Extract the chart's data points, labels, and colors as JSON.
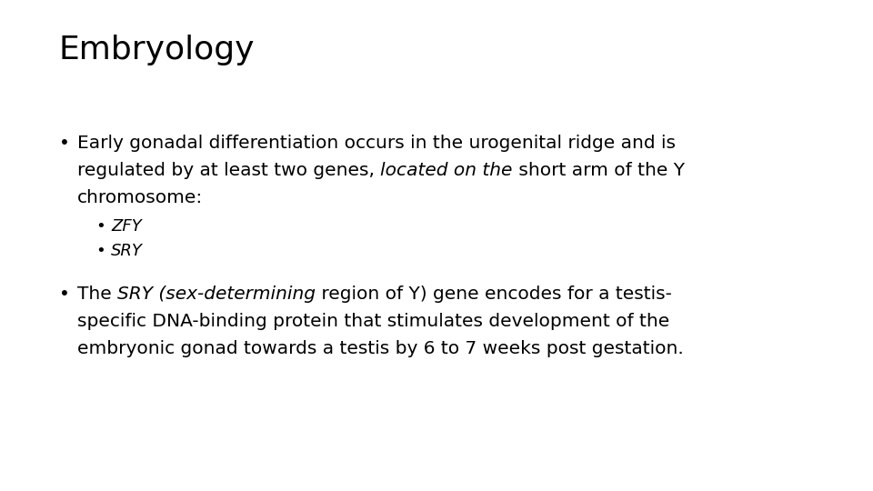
{
  "title": "Embryology",
  "background_color": "#ffffff",
  "text_color": "#000000",
  "title_fontsize": 26,
  "body_fontsize": 14.5,
  "sub_fontsize": 13.0,
  "font_family": "DejaVu Sans",
  "bullet1_line1": "Early gonadal differentiation occurs in the urogenital ridge and is",
  "bullet1_line2_pre": "regulated by at least two genes, ",
  "bullet1_line2_italic": "located on the",
  "bullet1_line2_post": " short arm of the Y",
  "bullet1_line3": "chromosome:",
  "sub1": "ZFY",
  "sub2": "SRY",
  "bullet2_line1_pre": "The ",
  "bullet2_line1_italic": "SRY (sex-determining",
  "bullet2_line1_post": " region of Y) gene encodes for a testis-",
  "bullet2_line2": "specific DNA-binding protein that stimulates development of the",
  "bullet2_line3": "embryonic gonad towards a testis by 6 to 7 weeks post gestation."
}
